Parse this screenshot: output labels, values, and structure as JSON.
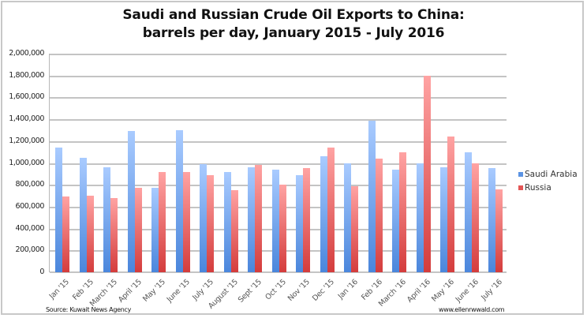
{
  "chart_data": {
    "type": "bar",
    "title": "Saudi and Russian Crude Oil Exports to China: barrels per day, January 2015 - July 2016",
    "title_lines": [
      "Saudi and Russian Crude Oil Exports to China:",
      "barrels per day, January 2015 - July 2016"
    ],
    "xlabel": "",
    "ylabel": "",
    "ylim": [
      0,
      2000000
    ],
    "yticks": [
      "0",
      "200,000",
      "400,000",
      "600,000",
      "800,000",
      "1,000,000",
      "1,200,000",
      "1,400,000",
      "1,600,000",
      "1,800,000",
      "2,000,000"
    ],
    "grid": true,
    "legend_position": "right",
    "categories": [
      "Jan '15",
      "Feb '15",
      "March '15",
      "April '15",
      "May '15",
      "June '15",
      "July '15",
      "August '15",
      "Sept '15",
      "Oct '15",
      "Nov '15",
      "Dec '15",
      "Jan '16",
      "Feb '16",
      "March '16",
      "April '16",
      "May '16",
      "June '16",
      "July '16"
    ],
    "series": [
      {
        "name": "Saudi Arabia",
        "color": "#5b93e3",
        "values": [
          1140000,
          1050000,
          960000,
          1290000,
          770000,
          1300000,
          990000,
          920000,
          960000,
          940000,
          890000,
          1060000,
          1000000,
          1390000,
          940000,
          1000000,
          960000,
          1100000,
          950000
        ]
      },
      {
        "name": "Russia",
        "color": "#e35555",
        "values": [
          690000,
          700000,
          680000,
          770000,
          920000,
          920000,
          890000,
          750000,
          980000,
          800000,
          950000,
          1140000,
          790000,
          1040000,
          1100000,
          1800000,
          1240000,
          1000000,
          760000
        ]
      }
    ],
    "annotations": {
      "source": "Source: Kuwait News Agency",
      "credit": "www.ellenrwwald.com"
    }
  }
}
